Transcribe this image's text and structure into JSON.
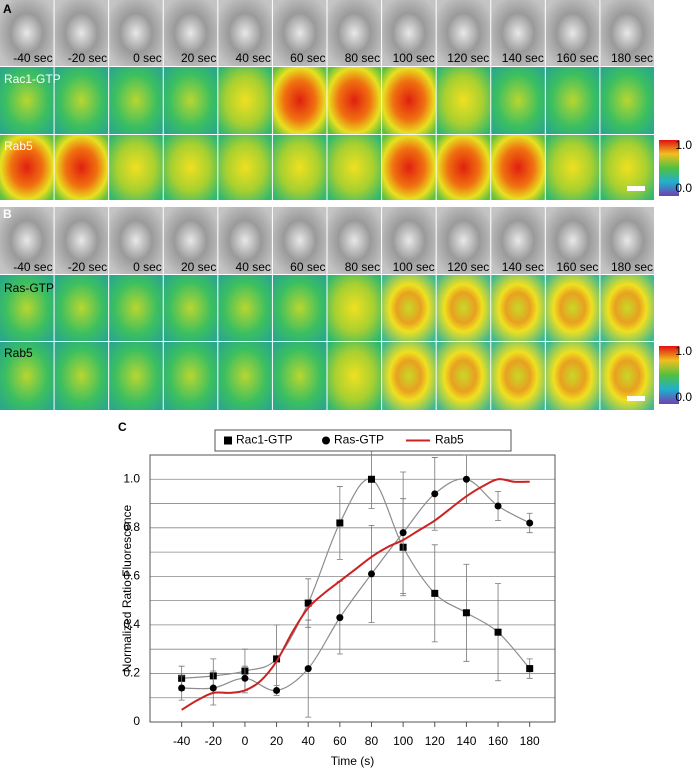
{
  "panels": {
    "A": {
      "label": "A",
      "time_labels": [
        "-40 sec",
        "-20 sec",
        "0 sec",
        "20 sec",
        "40 sec",
        "60 sec",
        "80 sec",
        "100 sec",
        "120 sec",
        "140 sec",
        "160 sec",
        "180 sec"
      ],
      "rows": [
        "Rac1-GTP",
        "Rab5"
      ],
      "colorbar": [
        "1.0",
        "0.0"
      ]
    },
    "B": {
      "label": "B",
      "time_labels": [
        "-40 sec",
        "-20 sec",
        "0 sec",
        "20 sec",
        "40 sec",
        "60 sec",
        "80 sec",
        "100 sec",
        "120 sec",
        "140 sec",
        "160 sec",
        "180 sec"
      ],
      "rows": [
        "Ras-GTP",
        "Rab5"
      ],
      "colorbar": [
        "1.0",
        "0.0"
      ]
    }
  },
  "chart_data": {
    "type": "line",
    "panel_label": "C",
    "xlabel": "Time (s)",
    "ylabel": "Normalized Ratio Fluorescence",
    "x": [
      -40,
      -20,
      0,
      20,
      40,
      60,
      80,
      100,
      120,
      140,
      160,
      180
    ],
    "series": [
      {
        "name": "Rac1-GTP",
        "color": "#000000",
        "line_color": "#8c8c8c",
        "marker": "square",
        "values": [
          0.18,
          0.19,
          0.21,
          0.26,
          0.49,
          0.82,
          1.0,
          0.72,
          0.53,
          0.45,
          0.37,
          0.22
        ],
        "errors": [
          0.05,
          0.07,
          0.09,
          0.14,
          0.1,
          0.15,
          0.12,
          0.2,
          0.2,
          0.2,
          0.2,
          0.04
        ]
      },
      {
        "name": "Ras-GTP",
        "color": "#000000",
        "line_color": "#8c8c8c",
        "marker": "circle",
        "values": [
          0.14,
          0.14,
          0.18,
          0.13,
          0.22,
          0.43,
          0.61,
          0.78,
          0.94,
          1.0,
          0.89,
          0.82
        ],
        "errors": [
          0.05,
          0.07,
          0.05,
          0.02,
          0.2,
          0.15,
          0.2,
          0.25,
          0.15,
          0.1,
          0.06,
          0.04
        ]
      },
      {
        "name": "Rab5",
        "color": "#cc2222",
        "line_color": "#cc2222",
        "marker": "none",
        "x": [
          -40,
          -30,
          -20,
          -10,
          0,
          10,
          20,
          30,
          40,
          50,
          60,
          70,
          80,
          90,
          100,
          110,
          120,
          130,
          140,
          150,
          160,
          170,
          180
        ],
        "values": [
          0.05,
          0.09,
          0.12,
          0.12,
          0.13,
          0.17,
          0.25,
          0.37,
          0.47,
          0.53,
          0.58,
          0.63,
          0.68,
          0.72,
          0.75,
          0.79,
          0.83,
          0.88,
          0.93,
          0.97,
          1.0,
          0.99,
          0.99
        ]
      }
    ],
    "xlim": [
      -60,
      196
    ],
    "xticks": [
      -40,
      -20,
      0,
      20,
      40,
      60,
      80,
      100,
      120,
      140,
      160,
      180
    ],
    "ylim": [
      0,
      1.1
    ],
    "yticks": [
      0,
      0.2,
      0.4,
      0.6,
      0.8,
      {
        "value": 1,
        "label": "1.0"
      }
    ],
    "minor_yticks": [
      0.1,
      0.3,
      0.5,
      0.7,
      0.9,
      1.1
    ],
    "grid": true
  }
}
